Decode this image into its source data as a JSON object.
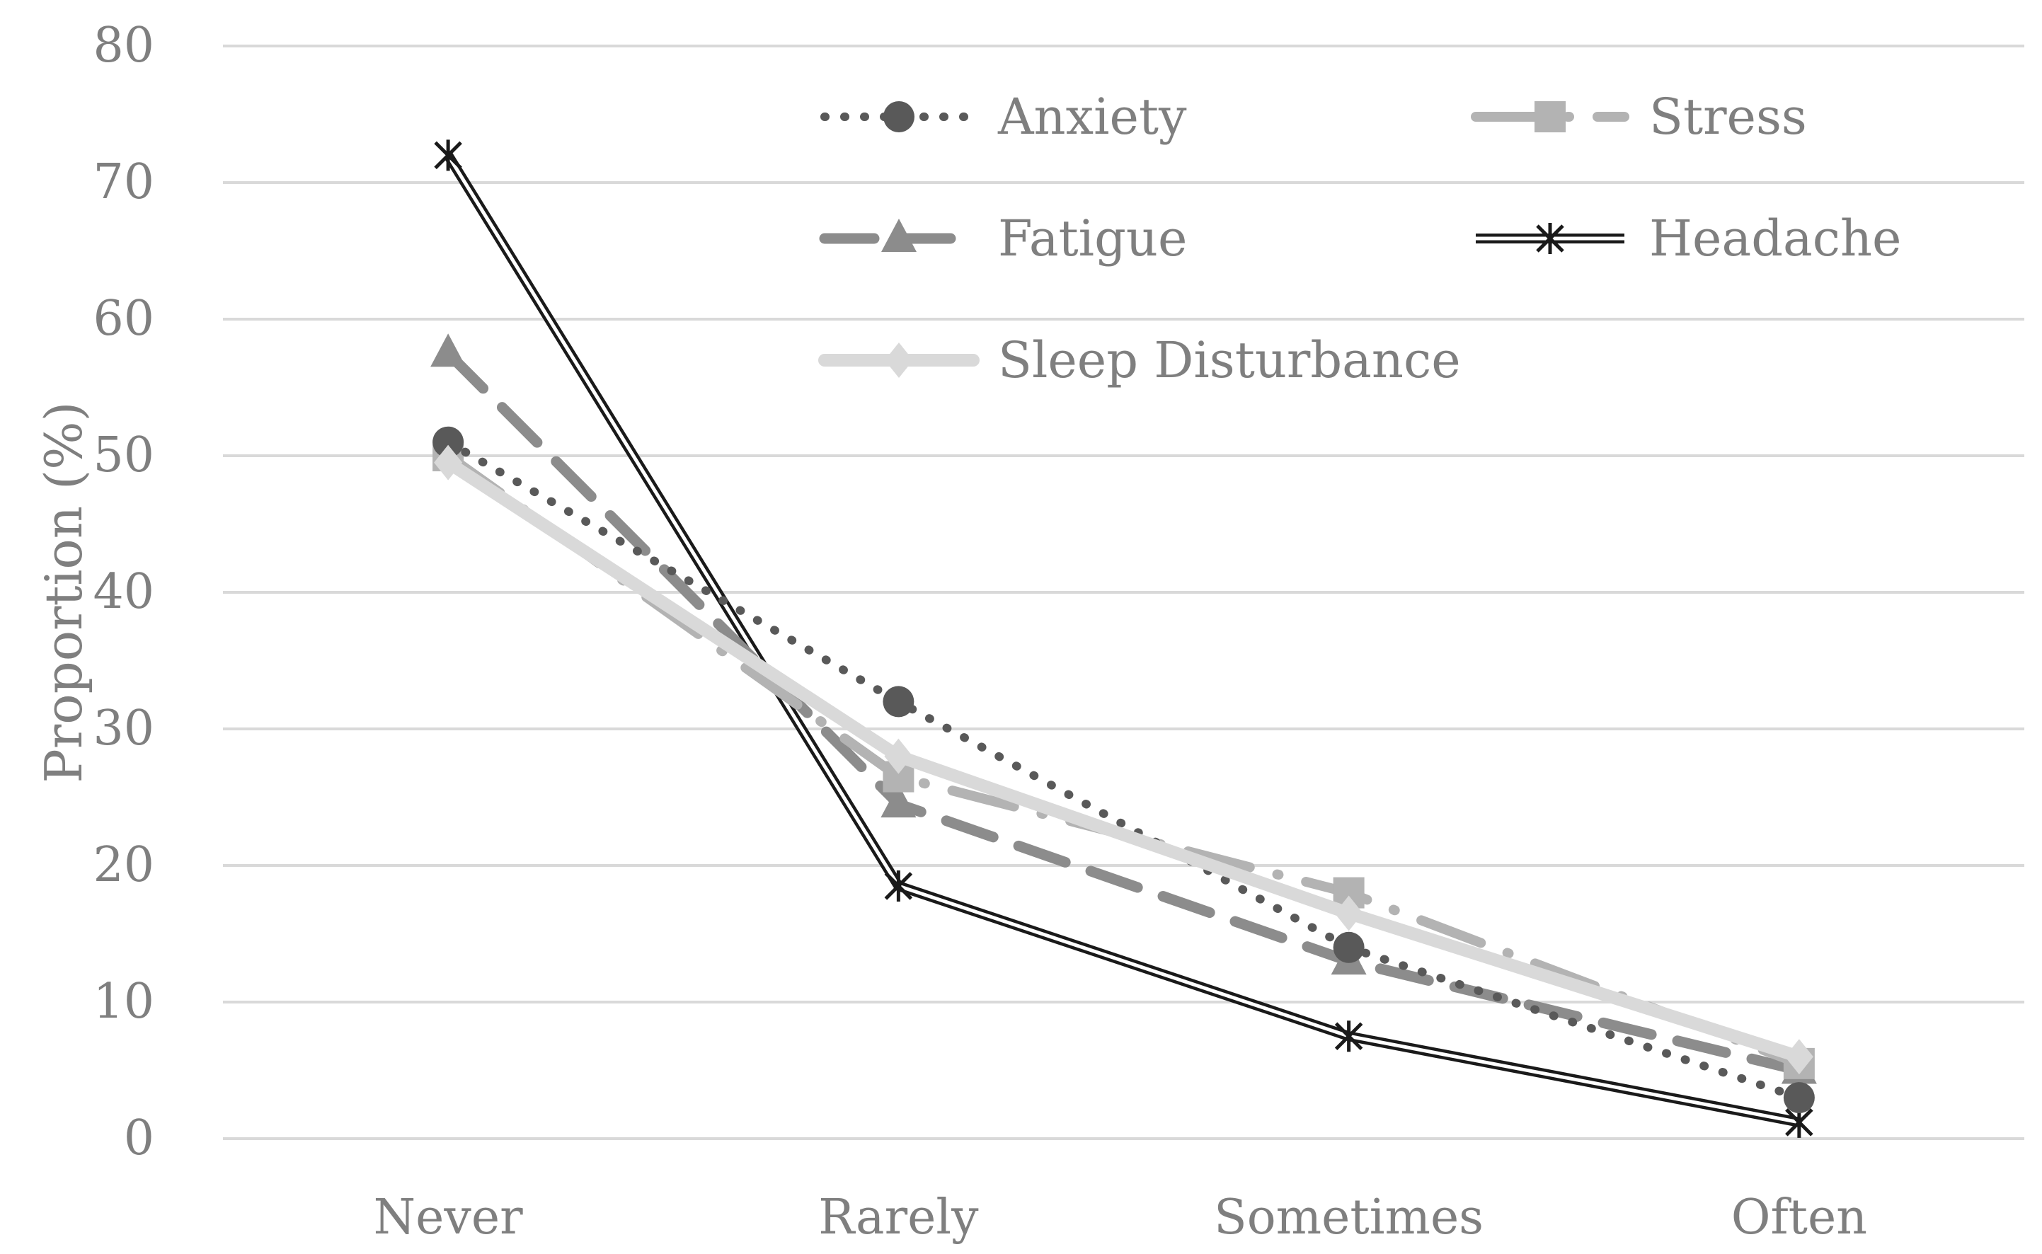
{
  "chart_data": {
    "type": "line",
    "title": "",
    "xlabel": "",
    "ylabel": "Proportion (%)",
    "categories": [
      "Never",
      "Rarely",
      "Sometimes",
      "Often"
    ],
    "ylim": [
      0,
      80
    ],
    "yticks": [
      0,
      10,
      20,
      30,
      40,
      50,
      60,
      70,
      80
    ],
    "grid": "horizontal",
    "legend_position": "top-inside",
    "series": [
      {
        "name": "Anxiety",
        "values": [
          51,
          32,
          14,
          3
        ],
        "color": "#595959",
        "line": "dotted",
        "marker": "circle"
      },
      {
        "name": "Stress",
        "values": [
          50,
          26.5,
          18,
          5.5
        ],
        "color": "#b3b3b3",
        "line": "dash-dot",
        "marker": "square"
      },
      {
        "name": "Fatigue",
        "values": [
          57.5,
          24.5,
          13,
          5
        ],
        "color": "#8c8c8c",
        "line": "long-dash",
        "marker": "triangle"
      },
      {
        "name": "Headache",
        "values": [
          72,
          18.5,
          7.5,
          1.2
        ],
        "color": "#1a1a1a",
        "line": "double",
        "marker": "star"
      },
      {
        "name": "Sleep Disturbance",
        "values": [
          49.5,
          28,
          16.5,
          6
        ],
        "color": "#d9d9d9",
        "line": "solid",
        "marker": "diamond"
      }
    ]
  }
}
